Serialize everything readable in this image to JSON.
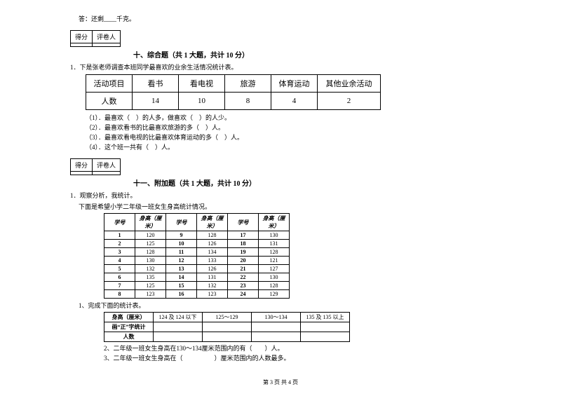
{
  "top_answer": "答：还剩____千克。",
  "section10": {
    "score_label": "得分",
    "review_label": "评卷人",
    "title": "十、综合题（共 1 大题，共计 10 分）",
    "intro": "1．下是张老师调查本班同学最喜欢的业余生活情况统计表。",
    "table": {
      "headers": [
        "活动项目",
        "看书",
        "看电视",
        "旅游",
        "体育运动",
        "其他业余活动"
      ],
      "row_label": "人数",
      "values": [
        "14",
        "10",
        "8",
        "4",
        "2"
      ]
    },
    "q1": "（1）．最喜欢（　）的人多，做喜欢（　）的人少。",
    "q2": "（2）．最喜欢看书的比最喜欢旅游的多（　）人。",
    "q3": "（3）．最喜欢看电视的比最喜欢体育运动的多（　）人。",
    "q4": "（4）．这个班一共有（　）人。"
  },
  "section11": {
    "score_label": "得分",
    "review_label": "评卷人",
    "title": "十一、附加题（共 1 大题，共计 10 分）",
    "intro1": "1．观察分析，我统计。",
    "intro2": "下面是希望小学二年级一班女生身高统计情况。",
    "stats": {
      "col_h1": "学号",
      "col_h2": "身高（厘米）",
      "rows": [
        [
          "1",
          "120",
          "9",
          "128",
          "17",
          "130"
        ],
        [
          "2",
          "125",
          "10",
          "126",
          "18",
          "131"
        ],
        [
          "3",
          "128",
          "11",
          "134",
          "19",
          "128"
        ],
        [
          "4",
          "130",
          "12",
          "133",
          "20",
          "121"
        ],
        [
          "5",
          "132",
          "13",
          "126",
          "21",
          "127"
        ],
        [
          "6",
          "135",
          "14",
          "131",
          "22",
          "130"
        ],
        [
          "7",
          "125",
          "15",
          "132",
          "23",
          "128"
        ],
        [
          "8",
          "123",
          "16",
          "123",
          "24",
          "129"
        ]
      ]
    },
    "tally_intro": "1、完成下面的统计表。",
    "tally": {
      "h1": "身高（厘米）",
      "cols": [
        "124 及 124 以下",
        "125～129",
        "130～134",
        "135 及 135 以上"
      ],
      "r2": "画“正”字统计",
      "r3": "人数"
    },
    "q2": "2、二年级一班女生身高在130～134厘米范围内的有（　　）人。",
    "q3": "3、二年级一班女生身高在（　　　　　）厘米范围内的人数最多。"
  },
  "footer": "第 3 页 共 4 页"
}
